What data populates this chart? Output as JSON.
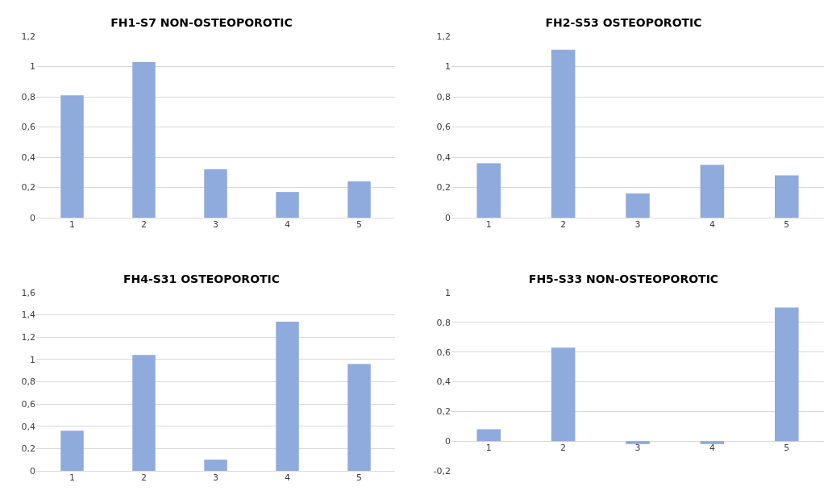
{
  "chart_data": [
    {
      "type": "bar",
      "title": "FH1-S7 NON-OSTEOPOROTIC",
      "categories": [
        "1",
        "2",
        "3",
        "4",
        "5"
      ],
      "values": [
        0.81,
        1.03,
        0.32,
        0.17,
        0.24
      ],
      "color": "#8faadc",
      "ylim": [
        0,
        1.2
      ],
      "yticks": [
        {
          "value": 0,
          "label": "0"
        },
        {
          "value": 0.2,
          "label": "0,2"
        },
        {
          "value": 0.4,
          "label": "0,4"
        },
        {
          "value": 0.6,
          "label": "0,6"
        },
        {
          "value": 0.8,
          "label": "0,8"
        },
        {
          "value": 1,
          "label": "1"
        },
        {
          "value": 1.2,
          "label": "1,2"
        }
      ],
      "grid": "y",
      "legend": false
    },
    {
      "type": "bar",
      "title": "FH2-S53 OSTEOPOROTIC",
      "categories": [
        "1",
        "2",
        "3",
        "4",
        "5"
      ],
      "values": [
        0.36,
        1.11,
        0.16,
        0.35,
        0.28
      ],
      "color": "#8faadc",
      "ylim": [
        0,
        1.2
      ],
      "yticks": [
        {
          "value": 0,
          "label": "0"
        },
        {
          "value": 0.2,
          "label": "0,2"
        },
        {
          "value": 0.4,
          "label": "0,4"
        },
        {
          "value": 0.6,
          "label": "0,6"
        },
        {
          "value": 0.8,
          "label": "0,8"
        },
        {
          "value": 1,
          "label": "1"
        },
        {
          "value": 1.2,
          "label": "1,2"
        }
      ],
      "grid": "y",
      "legend": false
    },
    {
      "type": "bar",
      "title": "FH4-S31 OSTEOPOROTIC",
      "categories": [
        "1",
        "2",
        "3",
        "4",
        "5"
      ],
      "values": [
        0.36,
        1.04,
        0.1,
        1.34,
        0.96
      ],
      "color": "#8faadc",
      "ylim": [
        0,
        1.6
      ],
      "yticks": [
        {
          "value": 0,
          "label": "0"
        },
        {
          "value": 0.2,
          "label": "0,2"
        },
        {
          "value": 0.4,
          "label": "0,4"
        },
        {
          "value": 0.6,
          "label": "0,6"
        },
        {
          "value": 0.8,
          "label": "0,8"
        },
        {
          "value": 1,
          "label": "1"
        },
        {
          "value": 1.2,
          "label": "1,2"
        },
        {
          "value": 1.4,
          "label": "1,4"
        },
        {
          "value": 1.6,
          "label": "1,6"
        }
      ],
      "grid": "y",
      "legend": false
    },
    {
      "type": "bar",
      "title": "FH5-S33 NON-OSTEOPOROTIC",
      "categories": [
        "1",
        "2",
        "3",
        "4",
        "5"
      ],
      "values": [
        0.08,
        0.63,
        -0.02,
        -0.02,
        0.9
      ],
      "color": "#8faadc",
      "ylim": [
        -0.2,
        1
      ],
      "yticks": [
        {
          "value": -0.2,
          "label": "-0,2"
        },
        {
          "value": 0,
          "label": "0"
        },
        {
          "value": 0.2,
          "label": "0,2"
        },
        {
          "value": 0.4,
          "label": "0,4"
        },
        {
          "value": 0.6,
          "label": "0,6"
        },
        {
          "value": 0.8,
          "label": "0,8"
        },
        {
          "value": 1,
          "label": "1"
        }
      ],
      "grid": "y",
      "legend": false
    }
  ]
}
